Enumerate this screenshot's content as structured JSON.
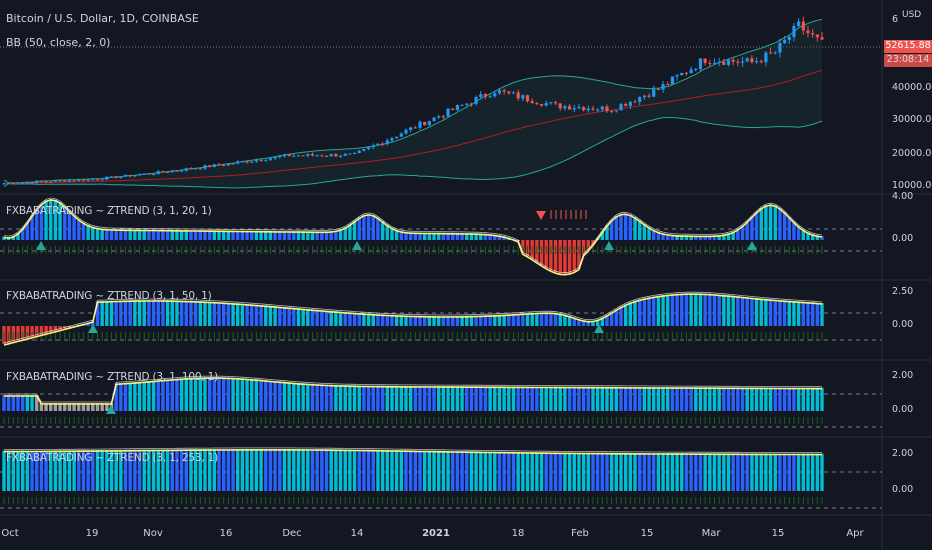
{
  "header": {
    "symbol_title": "Bitcoin / U.S. Dollar, 1D, COINBASE",
    "indicator_bb": "BB (50, close, 2, 0)",
    "currency": "USD"
  },
  "price_tag": {
    "last": "52615.88",
    "countdown": "23:08:14"
  },
  "panes": [
    {
      "id": "main",
      "axis_labels": [
        "6",
        "40000.00",
        "30000.00",
        "20000.00",
        "10000.00"
      ]
    },
    {
      "id": "z20",
      "title": "FXBABATRADING ~ ZTREND (3, 1, 20, 1)",
      "axis_labels": [
        "4.00",
        "0.00"
      ]
    },
    {
      "id": "z50",
      "title": "FXBABATRADING ~ ZTREND (3, 1, 50, 1)",
      "axis_labels": [
        "2.50",
        "0.00"
      ]
    },
    {
      "id": "z100",
      "title": "FXBABATRADING ~ ZTREND (3, 1, 100, 1)",
      "axis_labels": [
        "2.00",
        "0.00"
      ]
    },
    {
      "id": "z253",
      "title": "FXBABATRADING ~ ZTREND (3, 1, 253, 1)",
      "axis_labels": [
        "2.00",
        "0.00"
      ]
    }
  ],
  "x_axis": [
    "Oct",
    "19",
    "Nov",
    "16",
    "Dec",
    "14",
    "2021",
    "18",
    "Feb",
    "15",
    "Mar",
    "15",
    "Apr"
  ],
  "colors": {
    "background": "#131722",
    "up": "#26a69a",
    "down": "#ef5350",
    "candle_up": "#2196f3",
    "candle_down": "#ef5350",
    "bb_upper": "#26a69a",
    "bb_lower": "#26a69a",
    "bb_basis": "#b71c1c",
    "hist_teal": "#00bcd4",
    "hist_blue": "#2962ff",
    "hist_red": "#e53935",
    "hist_gray": "#9e9e9e",
    "signal_line": "#fff59d"
  },
  "chart_data": {
    "type": "candlestick",
    "symbol": "BTC/USD",
    "interval": "1D",
    "close_series_approx": [
      {
        "date": "Oct",
        "value": 10600
      },
      {
        "date": "19",
        "value": 11900
      },
      {
        "date": "Nov",
        "value": 13800
      },
      {
        "date": "16",
        "value": 16700
      },
      {
        "date": "Dec",
        "value": 19200
      },
      {
        "date": "14",
        "value": 19300
      },
      {
        "date": "2021",
        "value": 29000
      },
      {
        "date": "18",
        "value": 36600
      },
      {
        "date": "Feb",
        "value": 33500
      },
      {
        "date": "15",
        "value": 48000
      },
      {
        "date": "Mar",
        "value": 47000
      },
      {
        "date": "15",
        "value": 58000
      },
      {
        "date": "last",
        "value": 52615.88
      }
    ],
    "y_range": [
      8000,
      64000
    ]
  }
}
